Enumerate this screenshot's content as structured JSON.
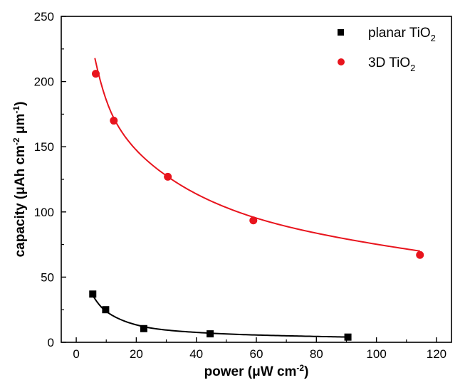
{
  "chart_data": {
    "type": "scatter",
    "xlabel": {
      "main": "power (μW cm",
      "sup": "-2",
      "tail": ")"
    },
    "ylabel": {
      "main": "capacity (μAh cm",
      "sup1": "-2",
      "mid": " μm",
      "sup2": "-1",
      "tail": ")"
    },
    "xlim": [
      -5,
      125
    ],
    "ylim": [
      0,
      250
    ],
    "xticks": [
      0,
      20,
      40,
      60,
      80,
      100,
      120
    ],
    "yticks": [
      0,
      50,
      100,
      150,
      200,
      250
    ],
    "xtick_labels": [
      "0",
      "20",
      "40",
      "60",
      "80",
      "100",
      "120"
    ],
    "ytick_labels": [
      "0",
      "50",
      "100",
      "150",
      "200",
      "250"
    ],
    "legend_position": "top-right",
    "series": [
      {
        "name": {
          "main": "planar TiO",
          "sub": "2"
        },
        "marker": "square",
        "color": "#000000",
        "x": [
          5.5,
          9.8,
          22.5,
          44.6,
          90.5
        ],
        "y": [
          37,
          25,
          10.5,
          6.5,
          4
        ],
        "fit": {
          "from": 5.5,
          "to": 90.5,
          "points": [
            [
              5.5,
              36
            ],
            [
              9.8,
              24
            ],
            [
              22.5,
              12
            ],
            [
              44.6,
              7
            ],
            [
              90.5,
              4
            ]
          ]
        }
      },
      {
        "name": {
          "main": "3D TiO",
          "sub": "2"
        },
        "marker": "circle",
        "color": "#e8141d",
        "x": [
          6.5,
          12.5,
          30.5,
          59,
          114.5
        ],
        "y": [
          206,
          170,
          127,
          93.5,
          67
        ],
        "fit": {
          "from": 6.2,
          "to": 114.5,
          "points": [
            [
              6.2,
              218
            ],
            [
              12.5,
              172
            ],
            [
              30.5,
              127
            ],
            [
              59,
              96
            ],
            [
              114.5,
              70
            ]
          ]
        }
      }
    ]
  }
}
